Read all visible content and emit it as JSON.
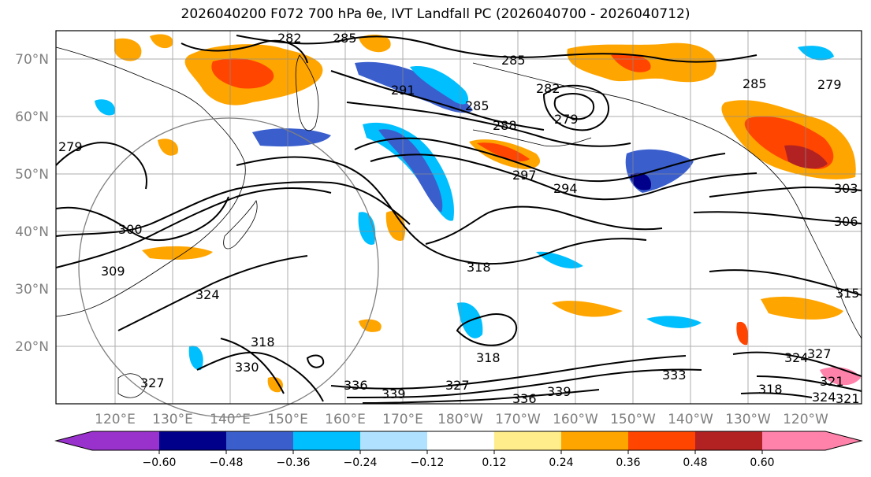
{
  "title": "2026040200 F072 700 hPa θe, IVT Landfall PC (2026040700 - 2026040712)",
  "map": {
    "lat_labels": [
      "70°N",
      "60°N",
      "50°N",
      "40°N",
      "30°N",
      "20°N"
    ],
    "lon_labels": [
      "120°E",
      "130°E",
      "140°E",
      "150°E",
      "160°E",
      "170°E",
      "180°W",
      "170°W",
      "160°W",
      "150°W",
      "140°W",
      "130°W",
      "120°W"
    ],
    "contour_labels": [
      "282",
      "285",
      "285",
      "291",
      "285",
      "288",
      "282",
      "279",
      "297",
      "294",
      "285",
      "279",
      "279",
      "300",
      "309",
      "324",
      "318",
      "318",
      "318",
      "330",
      "327",
      "336",
      "339",
      "339",
      "336",
      "327",
      "333",
      "327",
      "324",
      "321",
      "318",
      "324",
      "321",
      "303",
      "306",
      "315"
    ]
  },
  "colorbar": {
    "ticks": [
      "−0.60",
      "−0.48",
      "−0.36",
      "−0.24",
      "−0.12",
      "0.12",
      "0.24",
      "0.36",
      "0.48",
      "0.60"
    ],
    "colors": [
      "#9932cc",
      "#00008b",
      "#3a5fcd",
      "#00bfff",
      "#b0e2ff",
      "#ffffff",
      "#ffec8b",
      "#ffa500",
      "#ff4500",
      "#b22222",
      "#ff82ab"
    ]
  }
}
